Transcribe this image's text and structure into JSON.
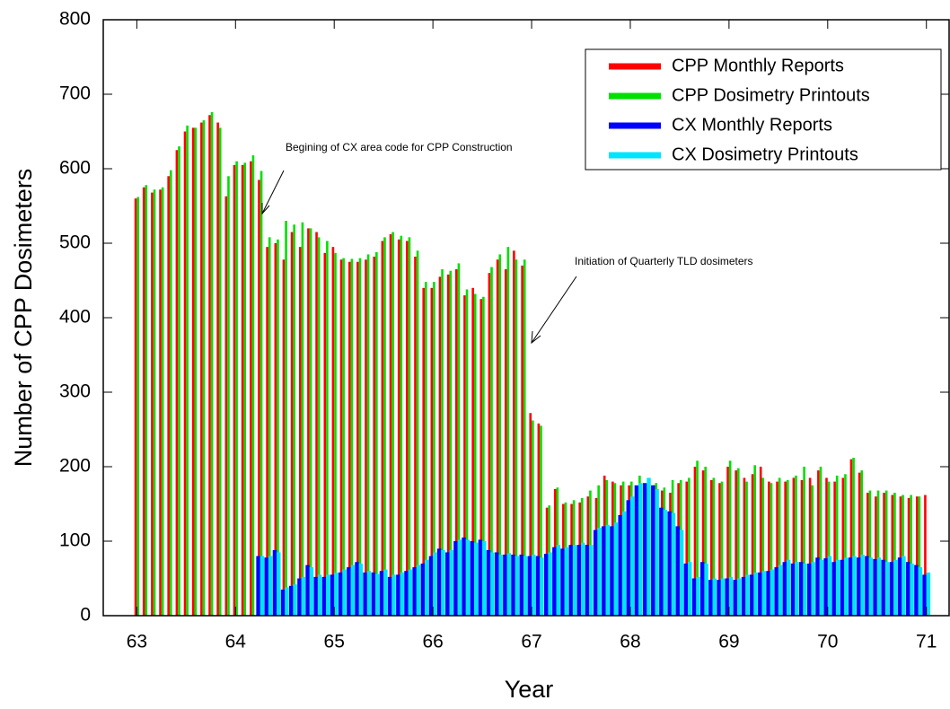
{
  "chart_data": {
    "type": "bar",
    "x_label": "Year",
    "y_label": "Number of CPP Dosimeters",
    "x": [
      63.0,
      63.083,
      63.167,
      63.25,
      63.333,
      63.417,
      63.5,
      63.583,
      63.667,
      63.75,
      63.833,
      63.917,
      64.0,
      64.083,
      64.167,
      64.25,
      64.333,
      64.417,
      64.5,
      64.583,
      64.667,
      64.75,
      64.833,
      64.917,
      65.0,
      65.083,
      65.167,
      65.25,
      65.333,
      65.417,
      65.5,
      65.583,
      65.667,
      65.75,
      65.833,
      65.917,
      66.0,
      66.083,
      66.167,
      66.25,
      66.333,
      66.417,
      66.5,
      66.583,
      66.667,
      66.75,
      66.833,
      66.917,
      67.0,
      67.083,
      67.167,
      67.25,
      67.333,
      67.417,
      67.5,
      67.583,
      67.667,
      67.75,
      67.833,
      67.917,
      68.0,
      68.083,
      68.167,
      68.25,
      68.333,
      68.417,
      68.5,
      68.583,
      68.667,
      68.75,
      68.833,
      68.917,
      69.0,
      69.083,
      69.167,
      69.25,
      69.333,
      69.417,
      69.5,
      69.583,
      69.667,
      69.75,
      69.833,
      69.917,
      70.0,
      70.083,
      70.167,
      70.25,
      70.333,
      70.417,
      70.5,
      70.583,
      70.667,
      70.75,
      70.833,
      70.917,
      71.0
    ],
    "series": [
      {
        "name": "CPP Monthly Reports",
        "color": "#ff0000",
        "values": [
          560,
          575,
          568,
          572,
          590,
          625,
          650,
          655,
          662,
          672,
          662,
          563,
          605,
          605,
          610,
          585,
          495,
          500,
          478,
          515,
          495,
          520,
          515,
          487,
          495,
          478,
          475,
          475,
          478,
          482,
          503,
          512,
          505,
          503,
          482,
          440,
          440,
          455,
          458,
          465,
          430,
          440,
          425,
          460,
          478,
          465,
          490,
          470,
          272,
          258,
          145,
          170,
          150,
          150,
          152,
          160,
          158,
          188,
          180,
          175,
          175,
          172,
          170,
          175,
          168,
          165,
          178,
          180,
          200,
          195,
          182,
          178,
          200,
          195,
          185,
          190,
          200,
          180,
          180,
          180,
          185,
          182,
          185,
          195,
          185,
          180,
          185,
          210,
          192,
          165,
          160,
          165,
          162,
          160,
          158,
          160,
          162
        ]
      },
      {
        "name": "CPP Dosimetry Printouts",
        "color": "#00e000",
        "values": [
          562,
          578,
          572,
          575,
          598,
          630,
          658,
          655,
          665,
          676,
          655,
          590,
          610,
          608,
          618,
          597,
          508,
          505,
          530,
          525,
          528,
          520,
          508,
          503,
          487,
          480,
          479,
          480,
          485,
          488,
          508,
          515,
          510,
          508,
          490,
          448,
          448,
          465,
          463,
          473,
          438,
          432,
          428,
          468,
          485,
          495,
          478,
          478,
          262,
          255,
          148,
          172,
          152,
          155,
          158,
          168,
          175,
          182,
          178,
          180,
          180,
          188,
          170,
          178,
          172,
          182,
          182,
          185,
          208,
          200,
          185,
          180,
          208,
          198,
          180,
          202,
          185,
          178,
          185,
          182,
          188,
          200,
          175,
          200,
          180,
          188,
          190,
          212,
          195,
          168,
          168,
          168,
          165,
          162,
          162,
          160,
          null
        ]
      },
      {
        "name": "CX Monthly Reports",
        "color": "#0000ff",
        "values": [
          null,
          null,
          null,
          null,
          null,
          null,
          null,
          null,
          null,
          null,
          null,
          null,
          null,
          null,
          null,
          80,
          78,
          88,
          35,
          40,
          50,
          68,
          52,
          52,
          55,
          58,
          65,
          72,
          58,
          58,
          60,
          52,
          55,
          60,
          65,
          70,
          80,
          90,
          85,
          100,
          105,
          100,
          102,
          88,
          85,
          82,
          82,
          82,
          80,
          80,
          83,
          92,
          90,
          95,
          95,
          95,
          115,
          120,
          120,
          135,
          155,
          175,
          178,
          175,
          145,
          140,
          120,
          70,
          50,
          72,
          48,
          48,
          50,
          48,
          52,
          55,
          58,
          60,
          65,
          72,
          70,
          72,
          70,
          78,
          77,
          72,
          75,
          78,
          78,
          80,
          76,
          75,
          72,
          78,
          72,
          68,
          55
        ]
      },
      {
        "name": "CX Dosimetry Printouts",
        "color": "#00e5ff",
        "values": [
          null,
          null,
          null,
          null,
          null,
          null,
          null,
          null,
          null,
          null,
          null,
          null,
          null,
          null,
          null,
          80,
          80,
          85,
          38,
          42,
          52,
          65,
          55,
          55,
          58,
          62,
          68,
          70,
          60,
          56,
          62,
          55,
          58,
          62,
          68,
          75,
          85,
          88,
          88,
          102,
          102,
          98,
          100,
          85,
          82,
          84,
          80,
          80,
          82,
          78,
          85,
          95,
          92,
          95,
          98,
          95,
          118,
          122,
          125,
          140,
          160,
          178,
          185,
          170,
          142,
          138,
          115,
          72,
          52,
          70,
          50,
          50,
          52,
          50,
          55,
          58,
          60,
          62,
          68,
          75,
          72,
          70,
          72,
          75,
          80,
          75,
          78,
          80,
          82,
          78,
          78,
          72,
          75,
          80,
          70,
          65,
          58
        ]
      }
    ],
    "xlim": [
      62.66,
      71.23
    ],
    "ylim": [
      0,
      800
    ],
    "xticks": [
      63,
      64,
      65,
      66,
      67,
      68,
      69,
      70,
      71
    ],
    "yticks": [
      0,
      100,
      200,
      300,
      400,
      500,
      600,
      700,
      800
    ],
    "legend": "upper right",
    "annotations": [
      "Begining of CX area code for CPP Construction",
      "Initiation of Quarterly TLD dosimeters"
    ]
  }
}
